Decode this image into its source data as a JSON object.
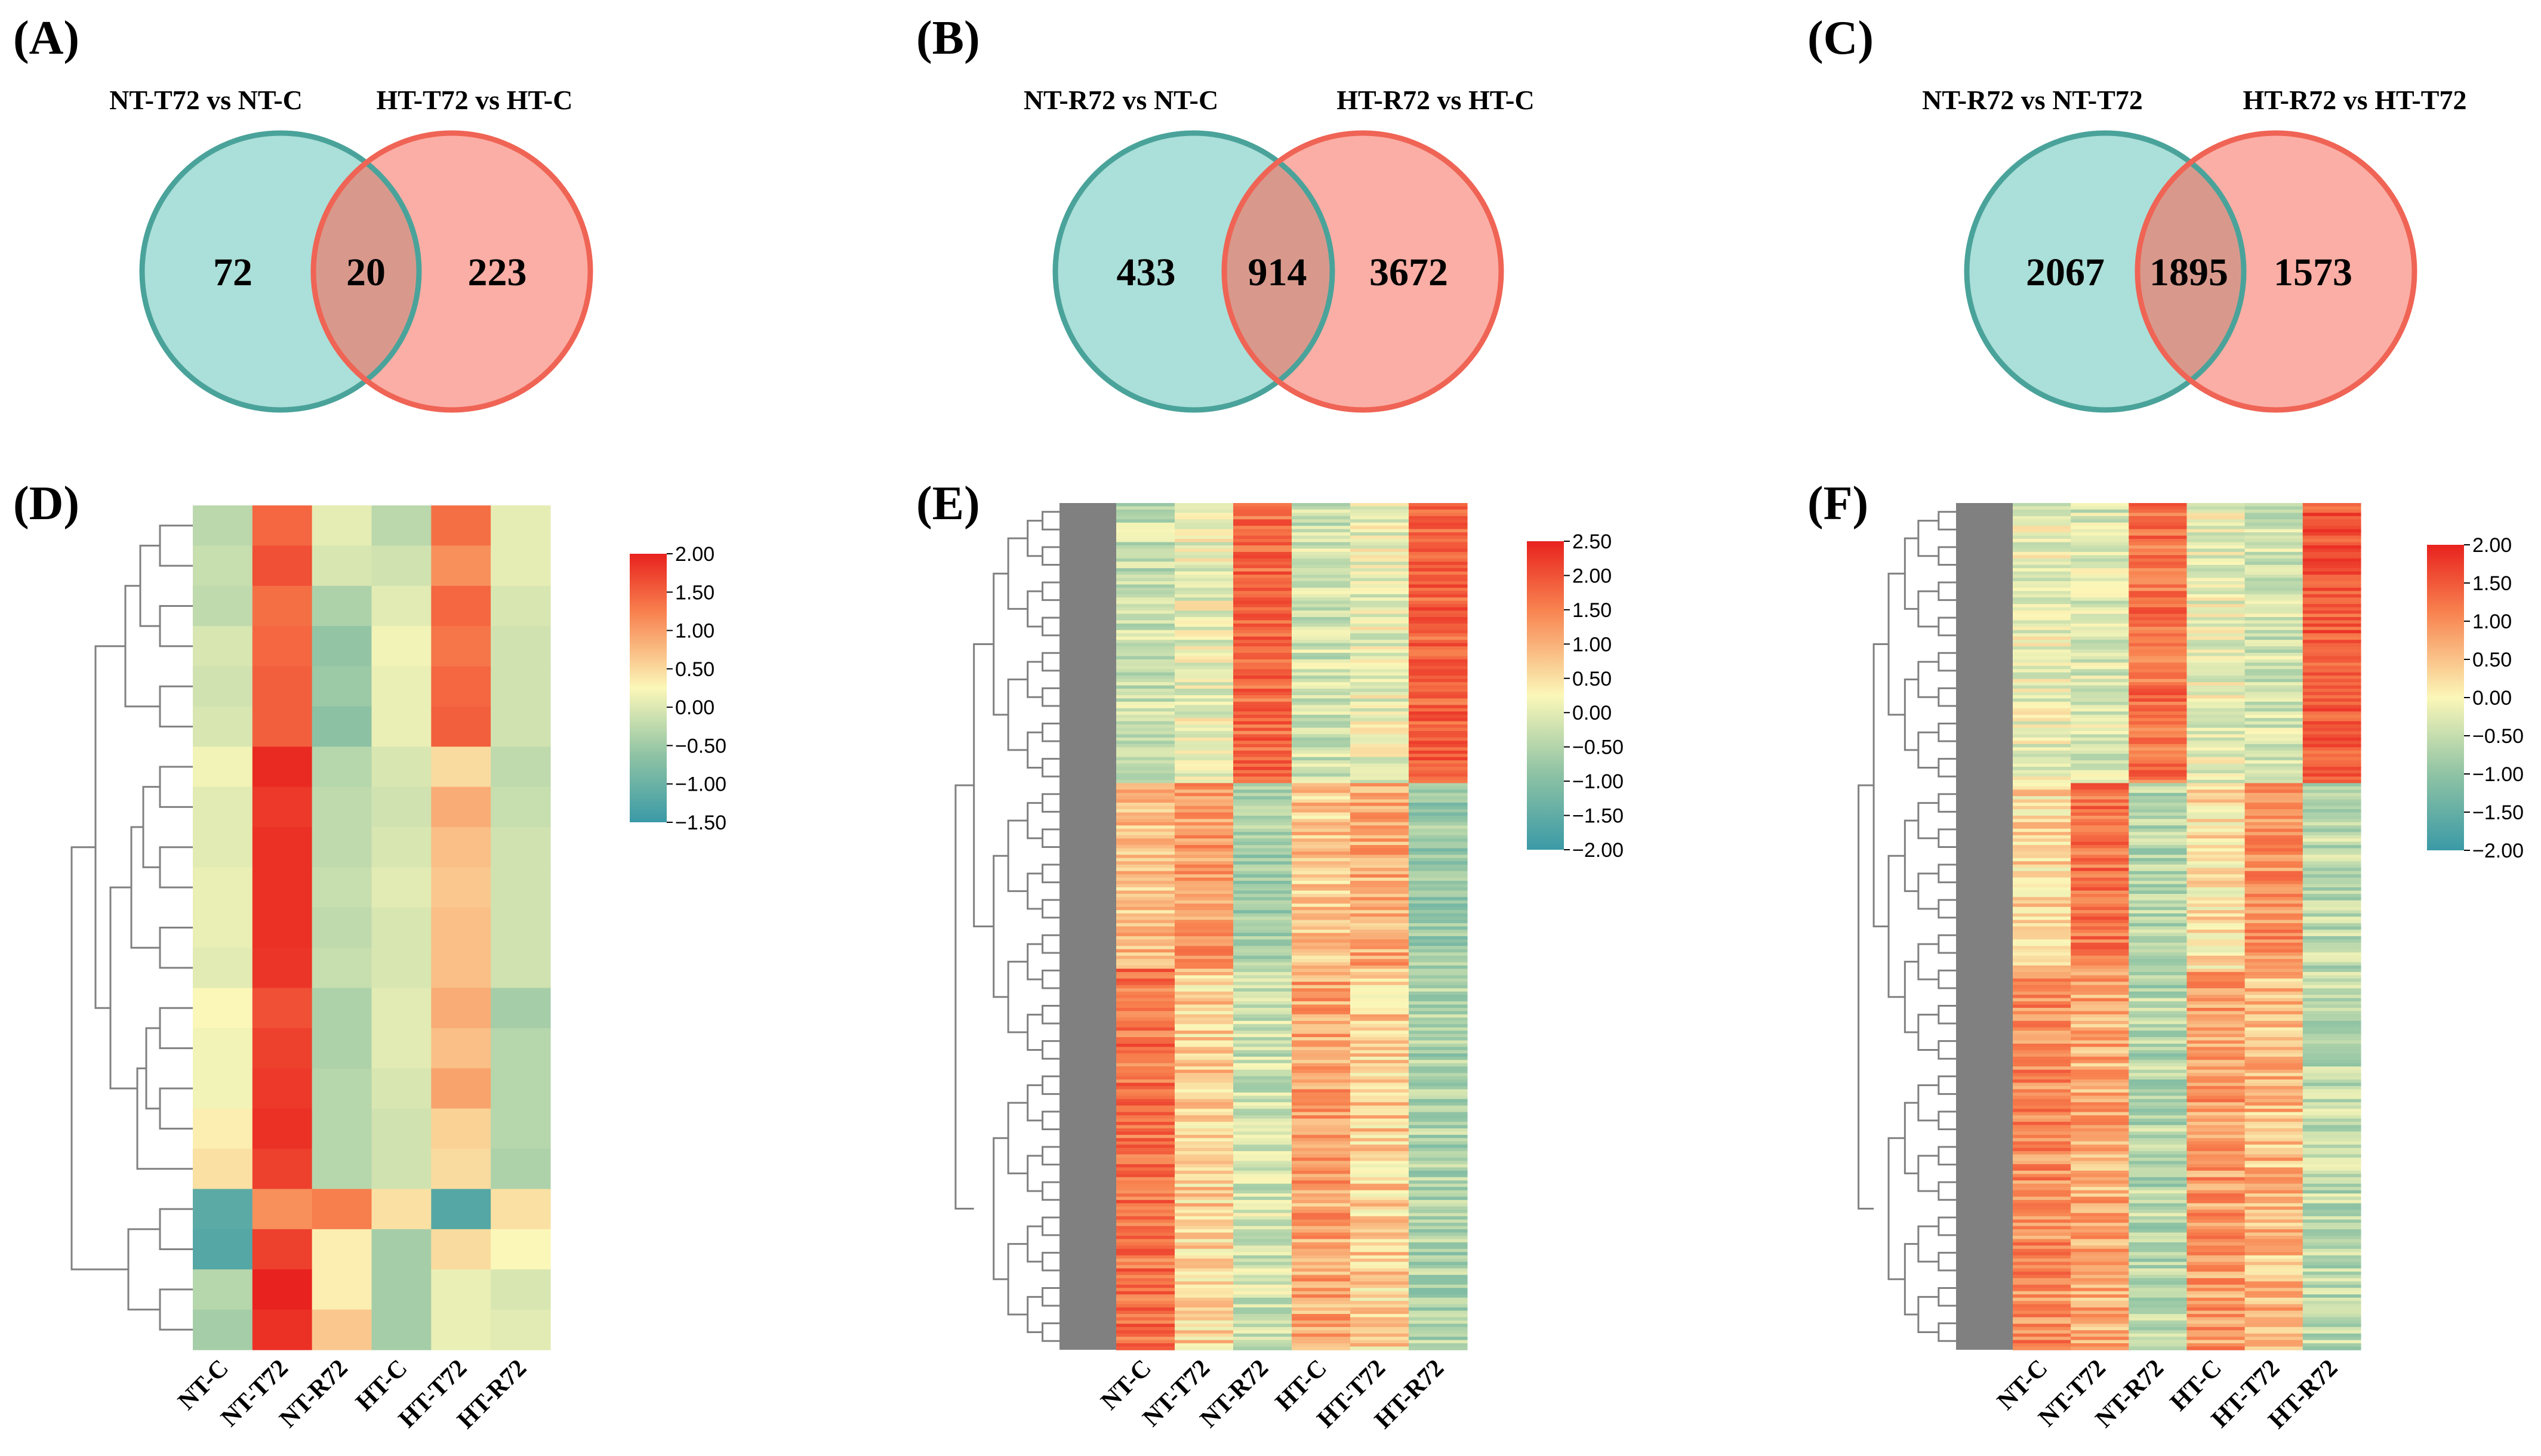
{
  "venns": [
    {
      "label": "(A)",
      "left_title": "NT-T72 vs NT-C",
      "right_title": "HT-T72 vs HT-C",
      "left_only": "72",
      "overlap": "20",
      "right_only": "223"
    },
    {
      "label": "(B)",
      "left_title": "NT-R72 vs NT-C",
      "right_title": "HT-R72 vs HT-C",
      "left_only": "433",
      "overlap": "914",
      "right_only": "3672"
    },
    {
      "label": "(C)",
      "left_title": "NT-R72 vs NT-T72",
      "right_title": "HT-R72 vs HT-T72",
      "left_only": "2067",
      "overlap": "1895",
      "right_only": "1573"
    }
  ],
  "heatmaps": [
    {
      "label": "(D)",
      "columns": [
        "NT-C",
        "NT-T72",
        "NT-R72",
        "HT-C",
        "HT-T72",
        "HT-R72"
      ],
      "colorbar_ticks": [
        "2.00",
        "1.50",
        "1.00",
        "0.50",
        "0.00",
        "−0.50",
        "−1.00",
        "−1.50"
      ]
    },
    {
      "label": "(E)",
      "columns": [
        "NT-C",
        "NT-T72",
        "NT-R72",
        "HT-C",
        "HT-T72",
        "HT-R72"
      ],
      "colorbar_ticks": [
        "2.50",
        "2.00",
        "1.50",
        "1.00",
        "0.50",
        "0.00",
        "−0.50",
        "−1.00",
        "−1.50",
        "−2.00"
      ]
    },
    {
      "label": "(F)",
      "columns": [
        "NT-C",
        "NT-T72",
        "NT-R72",
        "HT-C",
        "HT-T72",
        "HT-R72"
      ],
      "colorbar_ticks": [
        "2.00",
        "1.50",
        "1.00",
        "0.50",
        "0.00",
        "−0.50",
        "−1.00",
        "−1.50",
        "−2.00"
      ]
    }
  ],
  "colors": {
    "venn_left_fill": "#abdfd9",
    "venn_left_stroke": "#4aa39a",
    "venn_right_fill": "#fbaea5",
    "venn_right_stroke": "#ef6455",
    "venn_overlap": "#d8998c",
    "scale_low": "#3a9aa6",
    "scale_mid": "#fbf7b8",
    "scale_high": "#e8221e",
    "dendrogram": "#808080"
  }
}
